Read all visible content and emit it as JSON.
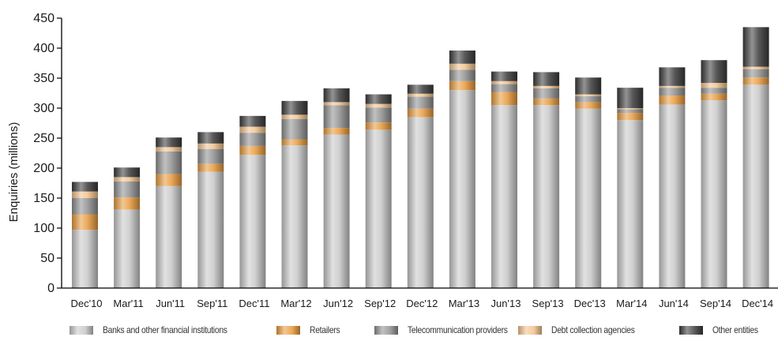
{
  "chart_data": {
    "type": "bar",
    "stacked": true,
    "ylabel": "Enquiries (millions)",
    "xlabel": "",
    "ylim": [
      0,
      450
    ],
    "yticks": [
      0,
      50,
      100,
      150,
      200,
      250,
      300,
      350,
      400,
      450
    ],
    "grid": false,
    "legend_position": "bottom",
    "categories": [
      "Dec'10",
      "Mar'11",
      "Jun'11",
      "Sep'11",
      "Dec'11",
      "Mar'12",
      "Jun'12",
      "Sep'12",
      "Dec'12",
      "Mar'13",
      "Jun'13",
      "Sep'13",
      "Dec'13",
      "Mar'14",
      "Jun'14",
      "Sep'14",
      "Dec'14"
    ],
    "series": [
      {
        "name": "Banks and other financial institutions",
        "color": "#c8c8c8",
        "values": [
          97,
          131,
          170,
          194,
          222,
          238,
          256,
          264,
          285,
          330,
          305,
          305,
          299,
          280,
          306,
          313,
          339
        ]
      },
      {
        "name": "Retailers",
        "color": "#e89a3c",
        "values": [
          26,
          20,
          20,
          13,
          15,
          10,
          11,
          12,
          14,
          15,
          22,
          11,
          11,
          12,
          15,
          11,
          12
        ]
      },
      {
        "name": "Telecommunication providers",
        "color": "#8f8f8f",
        "values": [
          27,
          27,
          38,
          25,
          22,
          34,
          38,
          25,
          20,
          19,
          13,
          17,
          10,
          6,
          13,
          10,
          14
        ]
      },
      {
        "name": "Debt collection agencies",
        "color": "#f2c28a",
        "values": [
          11,
          7,
          7,
          9,
          10,
          7,
          5,
          6,
          5,
          10,
          5,
          4,
          3,
          2,
          3,
          8,
          4
        ]
      },
      {
        "name": "Other entities",
        "color": "#3a3a3a",
        "values": [
          16,
          16,
          16,
          19,
          18,
          23,
          23,
          16,
          15,
          22,
          16,
          23,
          28,
          34,
          31,
          38,
          66
        ]
      }
    ]
  }
}
